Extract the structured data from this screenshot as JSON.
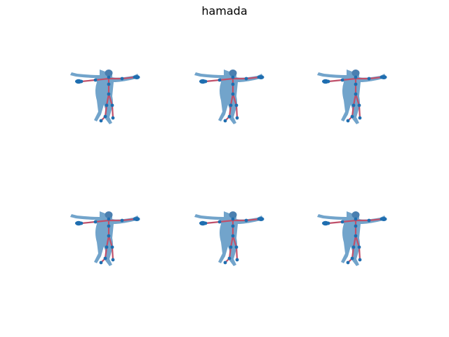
{
  "title": "hamada",
  "colors": {
    "body": "#6a9fc8",
    "body_dark": "#4a7fb0",
    "joint": "#1f6eb0",
    "bone": "#c0506a",
    "background": "#ffffff"
  },
  "panels": [
    {
      "id": 1,
      "pose": "t-pose"
    },
    {
      "id": 2,
      "pose": "t-pose"
    },
    {
      "id": 3,
      "pose": "t-pose"
    },
    {
      "id": 4,
      "pose": "t-pose"
    },
    {
      "id": 5,
      "pose": "t-pose"
    },
    {
      "id": 6,
      "pose": "t-pose"
    }
  ]
}
